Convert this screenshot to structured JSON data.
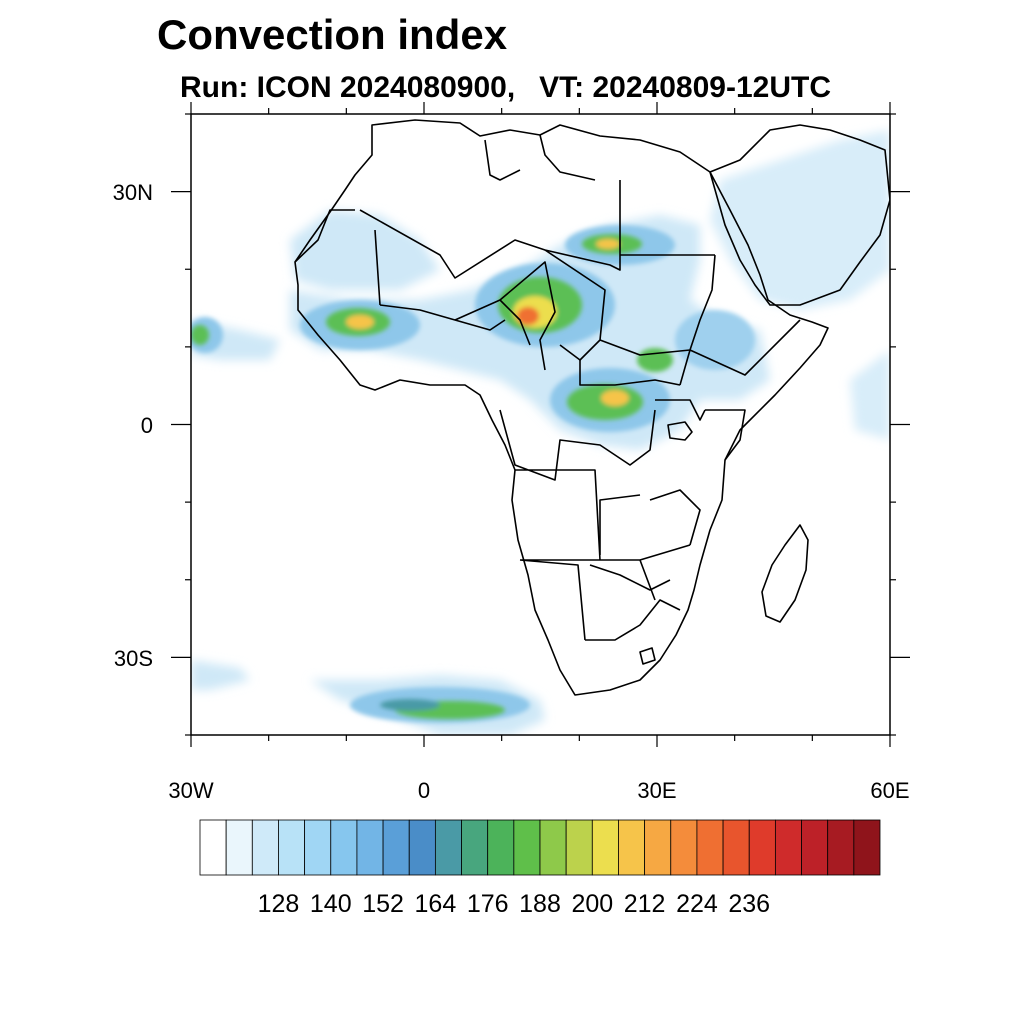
{
  "title": "Convection index",
  "subtitle": {
    "run": "Run: ICON 2024080900,",
    "vt": "VT: 20240809-12UTC"
  },
  "map": {
    "lon_range": [
      -30,
      60
    ],
    "lat_range": [
      -40,
      40
    ],
    "x_ticks": [
      {
        "lon": -30,
        "label": "30W"
      },
      {
        "lon": 0,
        "label": "0"
      },
      {
        "lon": 30,
        "label": "30E"
      },
      {
        "lon": 60,
        "label": "60E"
      }
    ],
    "y_ticks": [
      {
        "lat": 30,
        "label": "30N"
      },
      {
        "lat": 0,
        "label": "0"
      },
      {
        "lat": -30,
        "label": "30S"
      }
    ]
  },
  "colorbar": {
    "colors": [
      "#ffffff",
      "#eaf6fc",
      "#cfeaf9",
      "#b8e2f7",
      "#a0d6f4",
      "#86c6ee",
      "#72b5e6",
      "#5a9fd8",
      "#4a8dc8",
      "#4a9aa6",
      "#48a67e",
      "#4cb35a",
      "#5fbf4a",
      "#8ec94a",
      "#bcd24c",
      "#ecde4e",
      "#f6c44a",
      "#f6a843",
      "#f48c3b",
      "#ef6f32",
      "#e8552d",
      "#df3b2b",
      "#cf2b2b",
      "#bd2128",
      "#a71b22",
      "#8f141b"
    ],
    "labels": [
      "128",
      "140",
      "152",
      "164",
      "176",
      "188",
      "200",
      "212",
      "224",
      "236"
    ]
  }
}
